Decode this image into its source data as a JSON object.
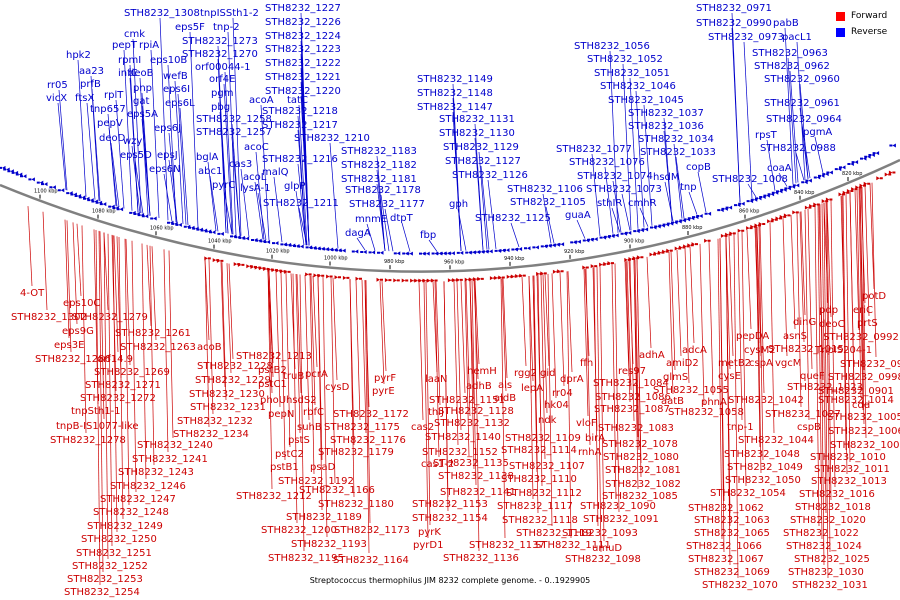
{
  "caption": "Streptococcus thermophilus JIM 8232 complete genome. - 0..1929905",
  "legend": [
    {
      "label": "Forward",
      "color": "#ff0000"
    },
    {
      "label": "Reverse",
      "color": "#0000ff"
    }
  ],
  "colors": {
    "forward": "#cc0000",
    "reverse": "#0000cc",
    "backbone": "#808080"
  },
  "ticks": [
    "1100 kbp",
    "1080 kbp",
    "1060 kbp",
    "1040 kbp",
    "1020 kbp",
    "1000 kbp",
    "980 kbp",
    "960 kbp",
    "940 kbp",
    "920 kbp",
    "900 kbp",
    "880 kbp",
    "860 kbp",
    "840 kbp",
    "820 kbp"
  ],
  "reverse_labels": [
    [
      "STH8232_1308",
      124,
      16
    ],
    [
      "tnpISSth1-2",
      200,
      16
    ],
    [
      "STH8232_1227",
      265,
      11
    ],
    [
      "eps5F",
      175,
      30
    ],
    [
      "tnp-2",
      213,
      30
    ],
    [
      "STH8232_1226",
      265,
      25
    ],
    [
      "cmk",
      124,
      37
    ],
    [
      "STH8232_1224",
      265,
      39
    ],
    [
      "hpk2",
      66,
      58
    ],
    [
      "pepT",
      112,
      48
    ],
    [
      "rpiA",
      139,
      48
    ],
    [
      "STH8232_1273",
      182,
      44
    ],
    [
      "STH8232_1223",
      265,
      52
    ],
    [
      "aa23",
      79,
      74
    ],
    [
      "rpmI",
      118,
      63
    ],
    [
      "eps10B",
      150,
      63
    ],
    [
      "STH8232_1270",
      182,
      57
    ],
    [
      "STH8232_1222",
      265,
      66
    ],
    [
      "rr05",
      47,
      88
    ],
    [
      "prfB",
      80,
      87
    ],
    [
      "infC",
      118,
      76
    ],
    [
      "deoB",
      128,
      76
    ],
    [
      "orf00044-1",
      195,
      70
    ],
    [
      "STH8232_1221",
      265,
      80
    ],
    [
      "vicX",
      46,
      101
    ],
    [
      "ftsX",
      75,
      101
    ],
    [
      "rplT",
      104,
      98
    ],
    [
      "pnp",
      133,
      91
    ],
    [
      "wefB",
      163,
      79
    ],
    [
      "orf4E",
      209,
      82
    ],
    [
      "STH8232_1220",
      265,
      94
    ],
    [
      "tnp657",
      90,
      112
    ],
    [
      "gat",
      133,
      104
    ],
    [
      "eps6I",
      163,
      92
    ],
    [
      "pgm",
      211,
      96
    ],
    [
      "acoA",
      249,
      103
    ],
    [
      "tatC",
      287,
      103
    ],
    [
      "pepV",
      97,
      126
    ],
    [
      "eps5A",
      127,
      117
    ],
    [
      "eps6L",
      165,
      106
    ],
    [
      "pbg",
      211,
      110
    ],
    [
      "STH8232_1218",
      262,
      114
    ],
    [
      "deoD",
      99,
      141
    ],
    [
      "eps6J",
      154,
      131
    ],
    [
      "STH8232_1258",
      196,
      122
    ],
    [
      "STH8232_1217",
      262,
      128
    ],
    [
      "wzy",
      123,
      144
    ],
    [
      "STH8232_1257",
      196,
      135
    ],
    [
      "acoC",
      244,
      150
    ],
    [
      "STH8232_1210",
      294,
      141
    ],
    [
      "eps5D",
      120,
      158
    ],
    [
      "epsJ",
      157,
      158
    ],
    [
      "bglA",
      196,
      160
    ],
    [
      "STH8232_1216",
      262,
      162
    ],
    [
      "eps6N",
      149,
      172
    ],
    [
      "abc1",
      198,
      174
    ],
    [
      "malQ",
      262,
      175
    ],
    [
      "STH8232_1183",
      341,
      154
    ],
    [
      "pyrC",
      212,
      188
    ],
    [
      "cas3",
      229,
      167
    ],
    [
      "acoL",
      243,
      180
    ],
    [
      "STH8232_1182",
      341,
      168
    ],
    [
      "lysA-1",
      240,
      191
    ],
    [
      "glpP",
      284,
      189
    ],
    [
      "STH8232_1181",
      341,
      182
    ],
    [
      "STH8232_1211",
      263,
      206
    ],
    [
      "STH8232_1178",
      345,
      193
    ],
    [
      "STH8232_1177",
      349,
      207
    ],
    [
      "mnmE",
      355,
      222
    ],
    [
      "dtpT",
      390,
      221
    ],
    [
      "dagA",
      345,
      236
    ],
    [
      "STH8232_1149",
      417,
      82
    ],
    [
      "STH8232_1148",
      417,
      96
    ],
    [
      "STH8232_1147",
      417,
      110
    ],
    [
      "STH8232_1131",
      439,
      122
    ],
    [
      "STH8232_1130",
      439,
      136
    ],
    [
      "STH8232_1129",
      443,
      150
    ],
    [
      "STH8232_1127",
      445,
      164
    ],
    [
      "STH8232_1126",
      452,
      178
    ],
    [
      "STH8232_1106",
      507,
      192
    ],
    [
      "STH8232_1105",
      510,
      205
    ],
    [
      "gph",
      449,
      207
    ],
    [
      "STH8232_1125",
      475,
      221
    ],
    [
      "fbp",
      420,
      238
    ],
    [
      "guaA",
      565,
      218
    ],
    [
      "STH8232_1056",
      574,
      49
    ],
    [
      "STH8232_1052",
      587,
      62
    ],
    [
      "STH8232_1051",
      594,
      76
    ],
    [
      "STH8232_1046",
      600,
      89
    ],
    [
      "STH8232_1045",
      608,
      103
    ],
    [
      "STH8232_1037",
      628,
      116
    ],
    [
      "STH8232_1036",
      628,
      129
    ],
    [
      "STH8232_1034",
      638,
      142
    ],
    [
      "STH8232_1077",
      556,
      152
    ],
    [
      "STH8232_1076",
      569,
      165
    ],
    [
      "STH8232_1033",
      640,
      155
    ],
    [
      "copB",
      686,
      170
    ],
    [
      "STH8232_1074",
      577,
      179
    ],
    [
      "hsdM",
      653,
      180
    ],
    [
      "tnp",
      680,
      190
    ],
    [
      "STH8232_1073",
      586,
      192
    ],
    [
      "sthIR",
      597,
      206
    ],
    [
      "cmhR",
      628,
      206
    ],
    [
      "STH8232_0971",
      696,
      11
    ],
    [
      "STH8232_0990",
      696,
      26
    ],
    [
      "pabB",
      773,
      26
    ],
    [
      "STH8232_0973",
      708,
      40
    ],
    [
      "pacL1",
      782,
      40
    ],
    [
      "STH8232_0963",
      752,
      56
    ],
    [
      "STH8232_0962",
      754,
      69
    ],
    [
      "STH8232_0960",
      764,
      82
    ],
    [
      "STH8232_0961",
      764,
      106
    ],
    [
      "STH8232_0964",
      766,
      122
    ],
    [
      "pgmA",
      803,
      135
    ],
    [
      "rpsT",
      755,
      138
    ],
    [
      "STH8232_0988",
      760,
      151
    ],
    [
      "coaA",
      767,
      171
    ],
    [
      "STH8232_1008",
      712,
      182
    ]
  ],
  "forward_labels": [
    [
      "4-OT",
      20,
      296
    ],
    [
      "STH8232_1279",
      72,
      320
    ],
    [
      "eps10C",
      63,
      306
    ],
    [
      "STH8232_1302",
      11,
      320
    ],
    [
      "eps9G",
      62,
      334
    ],
    [
      "eps3E",
      54,
      348
    ],
    [
      "STH8232_1261",
      115,
      336
    ],
    [
      "STH8232_1263",
      120,
      350
    ],
    [
      "STH8232_1286",
      35,
      362
    ],
    [
      "orf14.9",
      97,
      362
    ],
    [
      "STH8232_1269",
      94,
      375
    ],
    [
      "STH8232_1271",
      85,
      388
    ],
    [
      "STH8232_1272",
      80,
      401
    ],
    [
      "tnpSth1-1",
      71,
      414
    ],
    [
      "tnpB-IS1077-like",
      56,
      429
    ],
    [
      "STH8232_1278",
      50,
      443
    ],
    [
      "acoB",
      197,
      350
    ],
    [
      "STH8232_1228",
      197,
      369
    ],
    [
      "STH8232_1229",
      195,
      383
    ],
    [
      "STH8232_1230",
      189,
      397
    ],
    [
      "STH8232_1231",
      190,
      410
    ],
    [
      "STH8232_1232",
      177,
      424
    ],
    [
      "STH8232_1234",
      173,
      437
    ],
    [
      "STH8232_1240",
      137,
      448
    ],
    [
      "STH8232_1241",
      132,
      462
    ],
    [
      "STH8232_1243",
      118,
      475
    ],
    [
      "STH8232_1246",
      110,
      489
    ],
    [
      "STH8232_1247",
      100,
      502
    ],
    [
      "STH8232_1248",
      93,
      515
    ],
    [
      "STH8232_1249",
      87,
      529
    ],
    [
      "STH8232_1250",
      81,
      542
    ],
    [
      "STH8232_1251",
      76,
      556
    ],
    [
      "STH8232_1252",
      72,
      569
    ],
    [
      "STH8232_1253",
      67,
      582
    ],
    [
      "STH8232_1254",
      64,
      595
    ],
    [
      "STH8232_1213",
      236,
      359
    ],
    [
      "pstB2",
      258,
      373
    ],
    [
      "pstC1",
      258,
      387
    ],
    [
      "truB",
      283,
      379
    ],
    [
      "pcrA",
      305,
      377
    ],
    [
      "phoU",
      260,
      403
    ],
    [
      "hsdS2",
      286,
      403
    ],
    [
      "cysD",
      325,
      390
    ],
    [
      "pepN",
      268,
      417
    ],
    [
      "rbfC",
      303,
      415
    ],
    [
      "suhB",
      297,
      430
    ],
    [
      "pstS",
      288,
      443
    ],
    [
      "pstC2",
      275,
      457
    ],
    [
      "psaD",
      310,
      470
    ],
    [
      "pstB1",
      270,
      470
    ],
    [
      "STH8232_1212",
      236,
      499
    ],
    [
      "STH8232_1192",
      278,
      484
    ],
    [
      "STH8232_1189",
      286,
      520
    ],
    [
      "STH8232_1200",
      261,
      533
    ],
    [
      "STH8232_1193",
      291,
      547
    ],
    [
      "STH8232_1195",
      268,
      561
    ],
    [
      "STH8232_1166",
      299,
      493
    ],
    [
      "STH8232_1180",
      318,
      507
    ],
    [
      "STH8232_1173",
      334,
      533
    ],
    [
      "STH8232_1179",
      318,
      455
    ],
    [
      "STH8232_1176",
      330,
      443
    ],
    [
      "STH8232_1175",
      324,
      430
    ],
    [
      "STH8232_1172",
      333,
      417
    ],
    [
      "pyrF",
      374,
      381
    ],
    [
      "pyrE",
      372,
      394
    ],
    [
      "laaN",
      425,
      382
    ],
    [
      "thiJ",
      428,
      415
    ],
    [
      "cas2",
      411,
      430
    ],
    [
      "STH8232_1151",
      429,
      403
    ],
    [
      "cas1-2",
      421,
      467
    ],
    [
      "STH8232_1152",
      422,
      455
    ],
    [
      "STH8232_1153",
      412,
      507
    ],
    [
      "STH8232_1154",
      412,
      521
    ],
    [
      "pyrK",
      418,
      535
    ],
    [
      "pyrD1",
      413,
      548
    ],
    [
      "STH8232_1164",
      333,
      563
    ],
    [
      "STH8232_1136",
      443,
      561
    ],
    [
      "STH8232_1137",
      469,
      548
    ],
    [
      "STH8232_1111",
      535,
      548
    ],
    [
      "STH8232_1098",
      565,
      562
    ],
    [
      "umuD",
      592,
      551
    ],
    [
      "STH8232_1093",
      562,
      536
    ],
    [
      "STH8232_1119",
      516,
      536
    ],
    [
      "STH8232_1091",
      583,
      522
    ],
    [
      "STH8232_1118",
      502,
      523
    ],
    [
      "STH8232_1090",
      580,
      509
    ],
    [
      "STH8232_1117",
      497,
      509
    ],
    [
      "STH8232_1112",
      506,
      496
    ],
    [
      "STH8232_1141",
      440,
      495
    ],
    [
      "STH8232_1138",
      438,
      479
    ],
    [
      "STH8232_1110",
      501,
      482
    ],
    [
      "STH8232_1107",
      509,
      469
    ],
    [
      "STH8232_1135",
      433,
      466
    ],
    [
      "STH8232_1114",
      501,
      453
    ],
    [
      "STH8232_1140",
      425,
      440
    ],
    [
      "STH8232_1132",
      434,
      426
    ],
    [
      "STH8232_1128",
      438,
      414
    ],
    [
      "STH8232_1109",
      505,
      441
    ],
    [
      "hemH",
      467,
      374
    ],
    [
      "adhB",
      466,
      389
    ],
    [
      "als",
      498,
      388
    ],
    [
      "aldB",
      494,
      401
    ],
    [
      "rgg2",
      514,
      376
    ],
    [
      "gid",
      540,
      376
    ],
    [
      "lepA",
      521,
      391
    ],
    [
      "rr04",
      552,
      396
    ],
    [
      "hk04",
      544,
      408
    ],
    [
      "ndk",
      538,
      423
    ],
    [
      "dprA",
      560,
      382
    ],
    [
      "ffh",
      580,
      366
    ],
    [
      "res97",
      618,
      374
    ],
    [
      "STH8232_1084",
      593,
      386
    ],
    [
      "vloF",
      576,
      426
    ],
    [
      "birA",
      585,
      441
    ],
    [
      "rnhA",
      578,
      455
    ],
    [
      "STH8232_1086",
      595,
      400
    ],
    [
      "STH8232_1087",
      594,
      412
    ],
    [
      "STH8232_1083",
      598,
      431
    ],
    [
      "STH8232_1078",
      602,
      447
    ],
    [
      "STH8232_1080",
      603,
      460
    ],
    [
      "STH8232_1081",
      605,
      473
    ],
    [
      "STH8232_1082",
      605,
      487
    ],
    [
      "STH8232_1085",
      602,
      499
    ],
    [
      "adhA",
      639,
      358
    ],
    [
      "adcA",
      682,
      353
    ],
    [
      "cysM2",
      744,
      353
    ],
    [
      "amiD2",
      666,
      366
    ],
    [
      "metB2",
      718,
      366
    ],
    [
      "glmS",
      663,
      380
    ],
    [
      "cysE",
      718,
      379
    ],
    [
      "STH8232_1055",
      653,
      393
    ],
    [
      "aatB",
      661,
      404
    ],
    [
      "STH8232_1058",
      668,
      415
    ],
    [
      "phnA",
      701,
      405
    ],
    [
      "tnp-1",
      727,
      430
    ],
    [
      "STH8232_1062",
      688,
      511
    ],
    [
      "STH8232_1063",
      694,
      523
    ],
    [
      "STH8232_1065",
      694,
      536
    ],
    [
      "STH8232_1066",
      686,
      549
    ],
    [
      "STH8232_1067",
      688,
      562
    ],
    [
      "STH8232_1069",
      694,
      575
    ],
    [
      "STH8232_1070",
      702,
      588
    ],
    [
      "STH8232_1054",
      710,
      496
    ],
    [
      "STH8232_1050",
      725,
      483
    ],
    [
      "STH8232_1049",
      727,
      470
    ],
    [
      "STH8232_1048",
      724,
      457
    ],
    [
      "STH8232_1044",
      738,
      443
    ],
    [
      "STH8232_1042",
      728,
      403
    ],
    [
      "pepDA",
      736,
      339
    ],
    [
      "cspA",
      749,
      366
    ],
    [
      "vgcM",
      775,
      366
    ],
    [
      "asnS",
      783,
      339
    ],
    [
      "dinG",
      793,
      325
    ],
    [
      "pdp",
      819,
      313
    ],
    [
      "deoC",
      819,
      327
    ],
    [
      "STH8232_1015",
      768,
      352
    ],
    [
      "STH8232_1023",
      787,
      390
    ],
    [
      "queF",
      800,
      379
    ],
    [
      "STH8232_1027",
      765,
      417
    ],
    [
      "STH8232_1014",
      818,
      403
    ],
    [
      "cspB",
      797,
      430
    ],
    [
      "potD",
      862,
      299
    ],
    [
      "eriC",
      853,
      313
    ],
    [
      "prtS",
      857,
      326
    ],
    [
      "STH8232_0992",
      823,
      340
    ],
    [
      "TnpIS204-1",
      815,
      353
    ],
    [
      "STH8232_0998",
      828,
      380
    ],
    [
      "STH8232_0997",
      840,
      367
    ],
    [
      "STH8232_0901",
      818,
      394
    ],
    [
      "cdd",
      852,
      408
    ],
    [
      "STH8232_1005",
      827,
      420
    ],
    [
      "STH8232_1006",
      828,
      434
    ],
    [
      "STH8232_1007",
      830,
      448
    ],
    [
      "STH8232_1010",
      810,
      460
    ],
    [
      "STH8232_1011",
      814,
      472
    ],
    [
      "STH8232_1013",
      811,
      484
    ],
    [
      "STH8232_1016",
      799,
      497
    ],
    [
      "STH8232_1018",
      795,
      510
    ],
    [
      "STH8232_1020",
      790,
      523
    ],
    [
      "STH8232_1022",
      783,
      536
    ],
    [
      "STH8232_1024",
      786,
      549
    ],
    [
      "STH8232_1025",
      794,
      562
    ],
    [
      "STH8232_1030",
      788,
      575
    ],
    [
      "STH8232_1031",
      792,
      588
    ]
  ]
}
